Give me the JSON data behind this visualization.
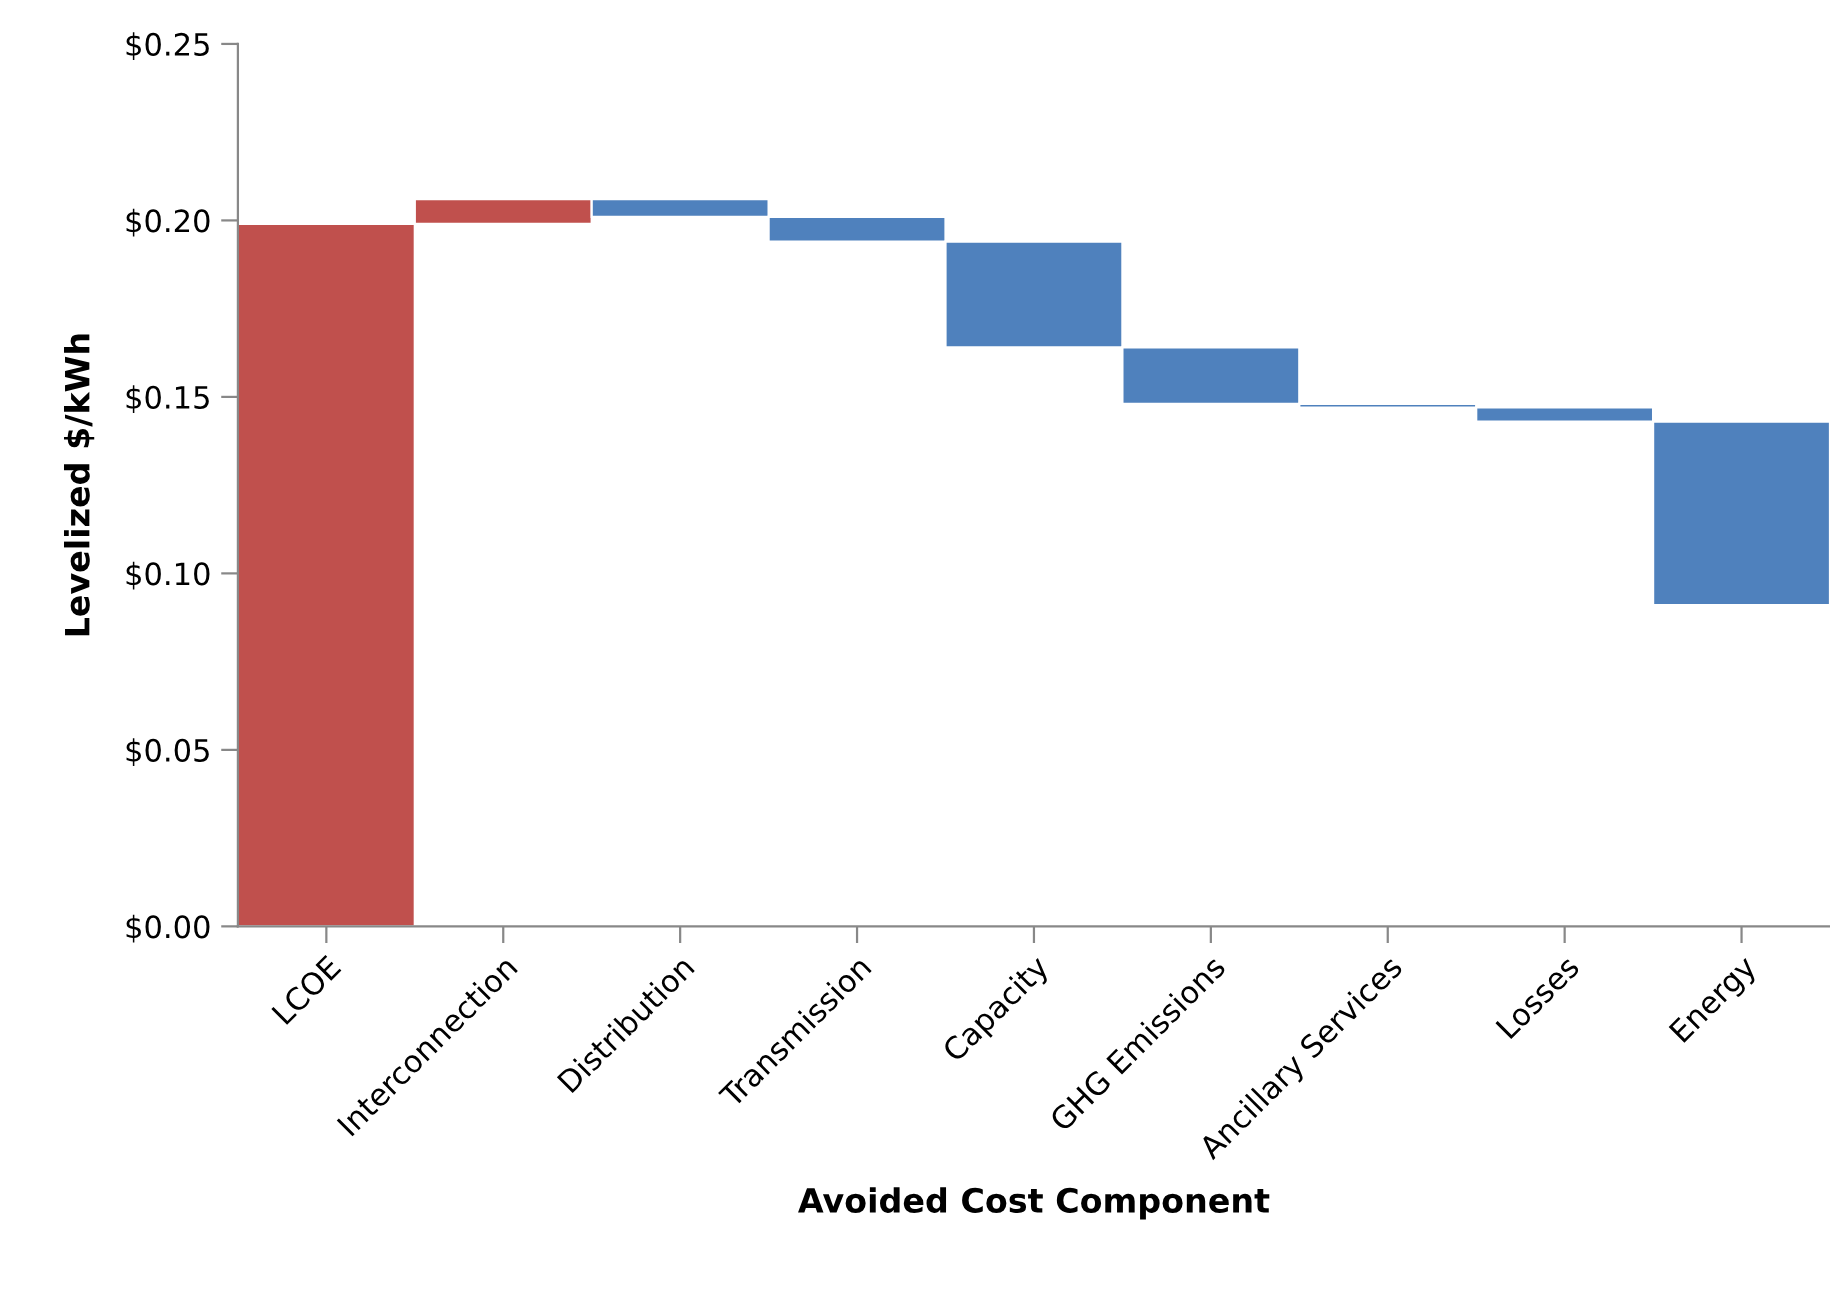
{
  "chart_data": {
    "type": "bar",
    "xlabel": "Avoided Cost Component",
    "ylabel": "Levelized $/kWh",
    "categories": [
      "LCOE",
      "Interconnection",
      "Distribution",
      "Transmission",
      "Capacity",
      "GHG Emissions",
      "Ancillary Services",
      "Losses",
      "Energy"
    ],
    "base": [
      0,
      0.199,
      0.206,
      0.201,
      0.194,
      0.164,
      0.148,
      0.147,
      0.143
    ],
    "values": [
      0.199,
      0.007,
      -0.005,
      -0.007,
      -0.03,
      -0.016,
      -0.001,
      -0.004,
      -0.052
    ],
    "colors": [
      "#c0504d",
      "#c0504d",
      "#4f81bd",
      "#4f81bd",
      "#4f81bd",
      "#4f81bd",
      "#4f81bd",
      "#4f81bd",
      "#4f81bd"
    ],
    "ylim": [
      0,
      0.25
    ],
    "yticks": [
      {
        "value": 0,
        "label": "$0.00"
      },
      {
        "value": 0.05,
        "label": "$0.05"
      },
      {
        "value": 0.1,
        "label": "$0.10"
      },
      {
        "value": 0.15,
        "label": "$0.15"
      },
      {
        "value": 0.2,
        "label": "$0.20"
      },
      {
        "value": 0.25,
        "label": "$0.25"
      }
    ],
    "grid": false
  }
}
